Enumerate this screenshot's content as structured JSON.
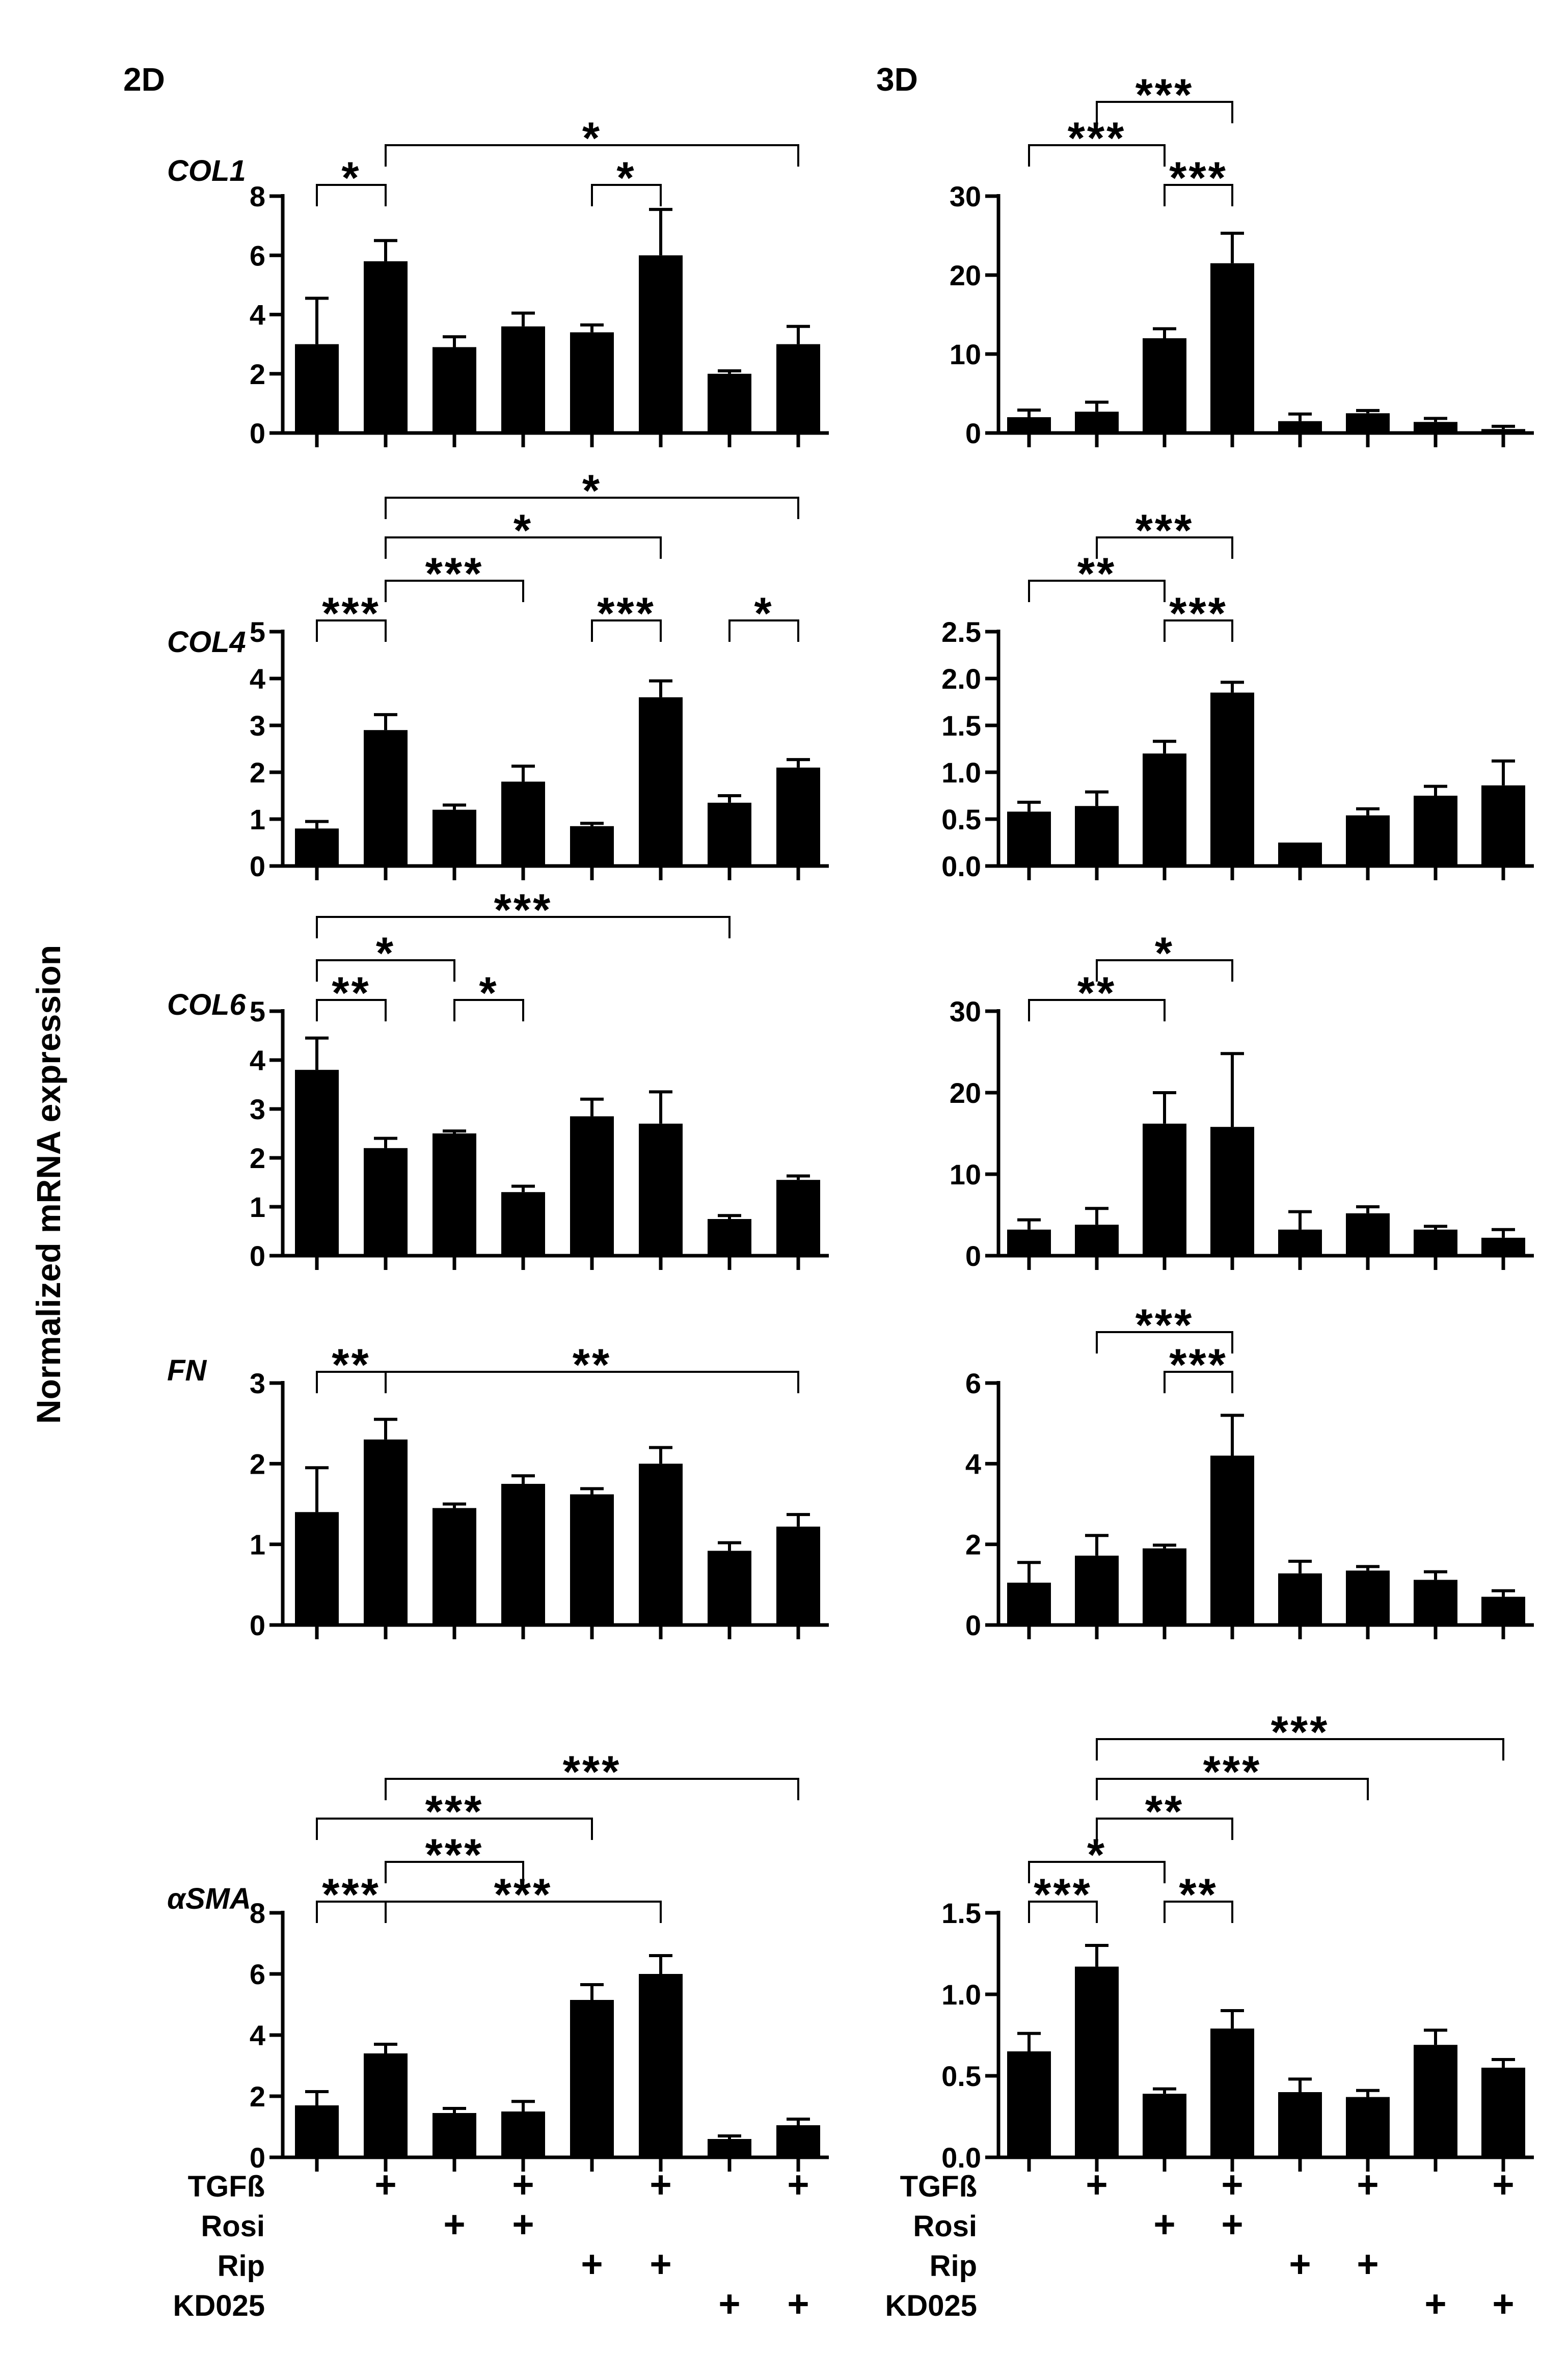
{
  "figure": {
    "y_axis_title": "Normalized mRNA expression",
    "column_titles": [
      "2D",
      "3D"
    ],
    "condition_rows": [
      {
        "label": "TGFß",
        "marks": [
          "",
          "+",
          "",
          "+",
          "",
          "+",
          "",
          "+"
        ]
      },
      {
        "label": "Rosi",
        "marks": [
          "",
          "",
          "+",
          "+",
          "",
          "",
          "",
          ""
        ]
      },
      {
        "label": "Rip",
        "marks": [
          "",
          "",
          "",
          "",
          "+",
          "+",
          "",
          ""
        ]
      },
      {
        "label": "KD025",
        "marks": [
          "",
          "",
          "",
          "",
          "",
          "",
          "+",
          "+"
        ]
      }
    ],
    "plus_glyph": "+",
    "bar_color": "#000000"
  },
  "chart_data": [
    {
      "type": "bar",
      "id": "col1-2d",
      "gene": "COL1",
      "panel": "2D",
      "values": [
        3.0,
        5.8,
        2.9,
        3.6,
        3.4,
        6.0,
        2.0,
        3.0
      ],
      "errors": [
        1.55,
        0.7,
        0.35,
        0.45,
        0.25,
        1.55,
        0.1,
        0.6
      ],
      "ylim": [
        0,
        8
      ],
      "yticks": [
        "0",
        "2",
        "4",
        "6",
        "8"
      ],
      "significance": [
        {
          "from": 1,
          "to": 2,
          "label": "*",
          "level": 1
        },
        {
          "from": 5,
          "to": 6,
          "label": "*",
          "level": 1
        },
        {
          "from": 2,
          "to": 8,
          "label": "*",
          "level": 2
        }
      ]
    },
    {
      "type": "bar",
      "id": "col1-3d",
      "gene": "",
      "panel": "3D",
      "values": [
        2.0,
        2.7,
        12.0,
        21.5,
        1.5,
        2.5,
        1.4,
        0.5
      ],
      "errors": [
        0.9,
        1.2,
        1.2,
        3.8,
        0.9,
        0.35,
        0.45,
        0.35
      ],
      "ylim": [
        0,
        30
      ],
      "yticks": [
        "0",
        "10",
        "20",
        "30"
      ],
      "significance": [
        {
          "from": 3,
          "to": 4,
          "label": "***",
          "level": 1
        },
        {
          "from": 1,
          "to": 3,
          "label": "***",
          "level": 2
        },
        {
          "from": 2,
          "to": 4,
          "label": "***",
          "level": 3
        }
      ]
    },
    {
      "type": "bar",
      "id": "col4-2d",
      "gene": "COL4",
      "panel": "2D",
      "values": [
        0.8,
        2.9,
        1.2,
        1.8,
        0.85,
        3.6,
        1.35,
        2.1
      ],
      "errors": [
        0.15,
        0.33,
        0.1,
        0.33,
        0.06,
        0.35,
        0.15,
        0.17
      ],
      "ylim": [
        0,
        5
      ],
      "yticks": [
        "0",
        "1",
        "2",
        "3",
        "4",
        "5"
      ],
      "significance": [
        {
          "from": 1,
          "to": 2,
          "label": "***",
          "level": 1
        },
        {
          "from": 5,
          "to": 6,
          "label": "***",
          "level": 1
        },
        {
          "from": 7,
          "to": 8,
          "label": "*",
          "level": 1
        },
        {
          "from": 2,
          "to": 4,
          "label": "***",
          "level": 2
        },
        {
          "from": 2,
          "to": 6,
          "label": "*",
          "level": 3
        },
        {
          "from": 2,
          "to": 8,
          "label": "*",
          "level": 4
        }
      ]
    },
    {
      "type": "bar",
      "id": "col4-3d",
      "gene": "",
      "panel": "3D",
      "values": [
        0.58,
        0.64,
        1.2,
        1.85,
        0.25,
        0.54,
        0.75,
        0.86
      ],
      "errors": [
        0.1,
        0.15,
        0.13,
        0.11,
        0.0,
        0.07,
        0.1,
        0.26
      ],
      "ylim": [
        0,
        2.5
      ],
      "yticks": [
        "0.0",
        "0.5",
        "1.0",
        "1.5",
        "2.0",
        "2.5"
      ],
      "significance": [
        {
          "from": 3,
          "to": 4,
          "label": "***",
          "level": 1
        },
        {
          "from": 1,
          "to": 3,
          "label": "**",
          "level": 2
        },
        {
          "from": 2,
          "to": 4,
          "label": "***",
          "level": 3
        }
      ]
    },
    {
      "type": "bar",
      "id": "col6-2d",
      "gene": "COL6",
      "panel": "2D",
      "values": [
        3.8,
        2.2,
        2.5,
        1.3,
        2.85,
        2.7,
        0.75,
        1.55
      ],
      "errors": [
        0.65,
        0.2,
        0.05,
        0.12,
        0.35,
        0.65,
        0.07,
        0.08
      ],
      "ylim": [
        0,
        5
      ],
      "yticks": [
        "0",
        "1",
        "2",
        "3",
        "4",
        "5"
      ],
      "significance": [
        {
          "from": 1,
          "to": 2,
          "label": "**",
          "level": 1
        },
        {
          "from": 3,
          "to": 4,
          "label": "*",
          "level": 1
        },
        {
          "from": 1,
          "to": 3,
          "label": "*",
          "level": 2
        },
        {
          "from": 1,
          "to": 7,
          "label": "***",
          "level": 3
        }
      ]
    },
    {
      "type": "bar",
      "id": "col6-3d",
      "gene": "",
      "panel": "3D",
      "values": [
        3.2,
        3.8,
        16.2,
        15.8,
        3.2,
        5.2,
        3.2,
        2.2
      ],
      "errors": [
        1.2,
        2.0,
        3.8,
        9.0,
        2.2,
        0.8,
        0.4,
        1.0
      ],
      "ylim": [
        0,
        30
      ],
      "yticks": [
        "0",
        "10",
        "20",
        "30"
      ],
      "significance": [
        {
          "from": 1,
          "to": 3,
          "label": "**",
          "level": 1
        },
        {
          "from": 2,
          "to": 4,
          "label": "*",
          "level": 2
        }
      ]
    },
    {
      "type": "bar",
      "id": "fn-2d",
      "gene": "FN",
      "panel": "2D",
      "values": [
        1.4,
        2.3,
        1.45,
        1.75,
        1.62,
        2.0,
        0.92,
        1.22
      ],
      "errors": [
        0.55,
        0.25,
        0.05,
        0.1,
        0.07,
        0.2,
        0.1,
        0.15
      ],
      "ylim": [
        0,
        3
      ],
      "yticks": [
        "0",
        "1",
        "2",
        "3"
      ],
      "significance": [
        {
          "from": 1,
          "to": 2,
          "label": "**",
          "level": 1
        },
        {
          "from": 2,
          "to": 8,
          "label": "**",
          "level": 1
        }
      ]
    },
    {
      "type": "bar",
      "id": "fn-3d",
      "gene": "",
      "panel": "3D",
      "values": [
        1.05,
        1.72,
        1.9,
        4.2,
        1.28,
        1.35,
        1.12,
        0.7
      ],
      "errors": [
        0.5,
        0.5,
        0.08,
        1.0,
        0.3,
        0.1,
        0.2,
        0.15
      ],
      "ylim": [
        0,
        6
      ],
      "yticks": [
        "0",
        "2",
        "4",
        "6"
      ],
      "significance": [
        {
          "from": 3,
          "to": 4,
          "label": "***",
          "level": 1
        },
        {
          "from": 2,
          "to": 4,
          "label": "***",
          "level": 2
        }
      ]
    },
    {
      "type": "bar",
      "id": "asma-2d",
      "gene": "αSMA",
      "panel": "2D",
      "values": [
        1.7,
        3.4,
        1.45,
        1.5,
        5.15,
        6.0,
        0.6,
        1.05
      ],
      "errors": [
        0.45,
        0.3,
        0.15,
        0.33,
        0.5,
        0.6,
        0.1,
        0.2
      ],
      "ylim": [
        0,
        8
      ],
      "yticks": [
        "0",
        "2",
        "4",
        "6",
        "8"
      ],
      "significance": [
        {
          "from": 1,
          "to": 2,
          "label": "***",
          "level": 1
        },
        {
          "from": 2,
          "to": 6,
          "label": "***",
          "level": 1
        },
        {
          "from": 2,
          "to": 4,
          "label": "***",
          "level": 2
        },
        {
          "from": 1,
          "to": 5,
          "label": "***",
          "level": 3
        },
        {
          "from": 2,
          "to": 8,
          "label": "***",
          "level": 4
        }
      ]
    },
    {
      "type": "bar",
      "id": "asma-3d",
      "gene": "",
      "panel": "3D",
      "values": [
        0.65,
        1.17,
        0.39,
        0.79,
        0.4,
        0.37,
        0.69,
        0.55
      ],
      "errors": [
        0.11,
        0.13,
        0.03,
        0.11,
        0.08,
        0.04,
        0.09,
        0.05
      ],
      "ylim": [
        0,
        1.5
      ],
      "yticks": [
        "0.0",
        "0.5",
        "1.0",
        "1.5"
      ],
      "significance": [
        {
          "from": 1,
          "to": 2,
          "label": "***",
          "level": 1
        },
        {
          "from": 3,
          "to": 4,
          "label": "**",
          "level": 1
        },
        {
          "from": 1,
          "to": 3,
          "label": "*",
          "level": 2
        },
        {
          "from": 2,
          "to": 4,
          "label": "**",
          "level": 3
        },
        {
          "from": 2,
          "to": 6,
          "label": "***",
          "level": 4
        },
        {
          "from": 2,
          "to": 8,
          "label": "***",
          "level": 5
        }
      ]
    }
  ]
}
